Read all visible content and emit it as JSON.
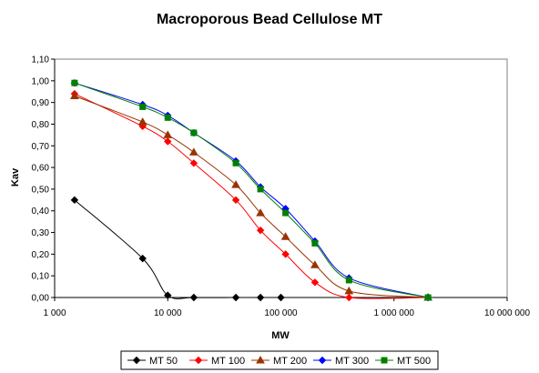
{
  "chart_data": {
    "type": "line",
    "title": "Macroporous Bead Cellulose MT",
    "xlabel": "MW",
    "ylabel": "Kav",
    "xscale": "log",
    "xlim": [
      1000,
      10000000
    ],
    "ylim": [
      0,
      1.1
    ],
    "x_ticks": [
      1000,
      10000,
      100000,
      1000000,
      10000000
    ],
    "x_tick_labels": [
      "1 000",
      "10 000",
      "100 000",
      "1 000 000",
      "10 000 000"
    ],
    "y_ticks": [
      0,
      0.1,
      0.2,
      0.3,
      0.4,
      0.5,
      0.6,
      0.7,
      0.8,
      0.9,
      1.0,
      1.1
    ],
    "y_tick_labels": [
      "0,00",
      "0,10",
      "0,20",
      "0,30",
      "0,40",
      "0,50",
      "0,60",
      "0,70",
      "0,80",
      "0,90",
      "1,00",
      "1,10"
    ],
    "grid": false,
    "legend_position": "bottom",
    "series": [
      {
        "name": "MT 50",
        "color": "#000000",
        "marker": "diamond",
        "x": [
          1500,
          6000,
          10000,
          17000,
          40000,
          66000,
          100000
        ],
        "y": [
          0.45,
          0.18,
          0.01,
          0.0,
          0.0,
          0.0,
          0.0
        ]
      },
      {
        "name": "MT 100",
        "color": "#ff0000",
        "marker": "diamond",
        "x": [
          1500,
          6000,
          10000,
          17000,
          40000,
          66000,
          110000,
          200000,
          400000,
          2000000
        ],
        "y": [
          0.94,
          0.79,
          0.72,
          0.62,
          0.45,
          0.31,
          0.2,
          0.07,
          0.0,
          0.0
        ]
      },
      {
        "name": "MT 200",
        "color": "#993300",
        "marker": "triangle",
        "x": [
          1500,
          6000,
          10000,
          17000,
          40000,
          66000,
          110000,
          200000,
          400000,
          2000000
        ],
        "y": [
          0.93,
          0.81,
          0.75,
          0.67,
          0.52,
          0.39,
          0.28,
          0.15,
          0.03,
          0.0
        ]
      },
      {
        "name": "MT 300",
        "color": "#0000ff",
        "marker": "diamond",
        "x": [
          1500,
          6000,
          10000,
          17000,
          40000,
          66000,
          110000,
          200000,
          400000,
          2000000
        ],
        "y": [
          0.99,
          0.89,
          0.84,
          0.76,
          0.63,
          0.51,
          0.41,
          0.26,
          0.09,
          0.0
        ]
      },
      {
        "name": "MT 500",
        "color": "#008000",
        "marker": "square",
        "x": [
          1500,
          6000,
          10000,
          17000,
          40000,
          66000,
          110000,
          200000,
          400000,
          2000000
        ],
        "y": [
          0.99,
          0.88,
          0.83,
          0.76,
          0.62,
          0.5,
          0.39,
          0.25,
          0.08,
          0.0
        ]
      }
    ]
  }
}
